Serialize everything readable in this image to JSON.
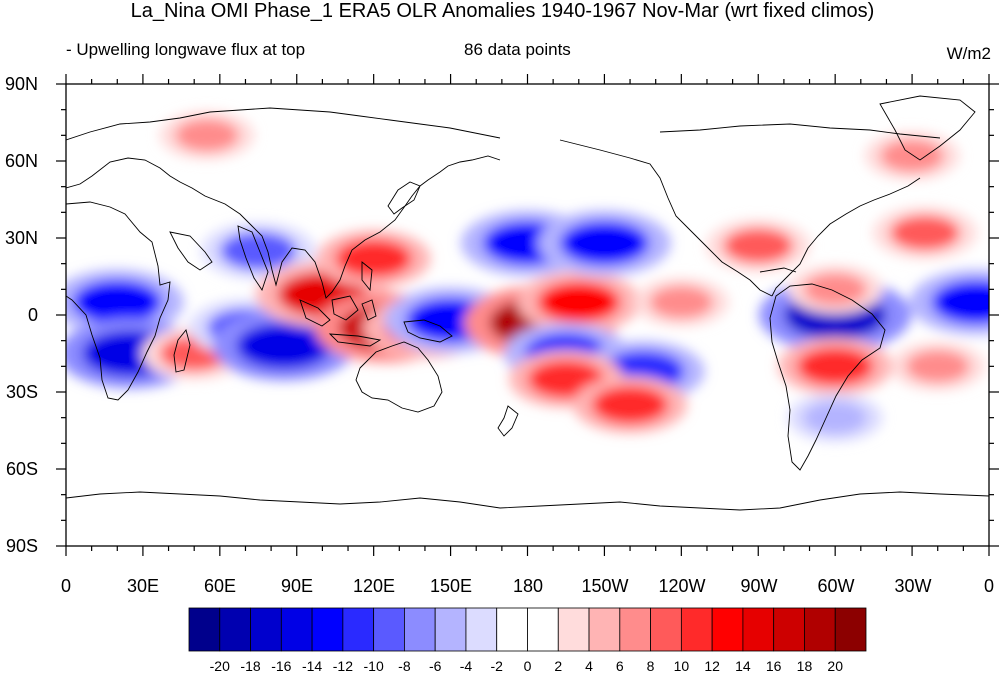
{
  "title": "La_Nina OMI Phase_1 ERA5 OLR Anomalies 1940-1967 Nov-Mar (wrt fixed climos)",
  "subtitle_left": "- Upwelling longwave flux at top",
  "subtitle_center": "86 data points",
  "units": "W/m2",
  "lat_labels": [
    "90N",
    "60N",
    "30N",
    "0",
    "30S",
    "60S",
    "90S"
  ],
  "lon_labels": [
    "0",
    "30E",
    "60E",
    "90E",
    "120E",
    "150E",
    "180",
    "150W",
    "120W",
    "90W",
    "60W",
    "30W",
    "0"
  ],
  "colorbar": {
    "labels": [
      "-20",
      "-18",
      "-16",
      "-14",
      "-12",
      "-10",
      "-8",
      "-6",
      "-4",
      "-2",
      "0",
      "2",
      "4",
      "6",
      "8",
      "10",
      "12",
      "14",
      "16",
      "18",
      "20"
    ],
    "colors": [
      "#00008c",
      "#0000b0",
      "#0000cd",
      "#0000e6",
      "#0000ff",
      "#2a2aff",
      "#5a5aff",
      "#8c8cff",
      "#b4b4ff",
      "#dcdcff",
      "#ffffff",
      "#ffffff",
      "#ffdcdc",
      "#ffb4b4",
      "#ff8c8c",
      "#ff5a5a",
      "#ff2a2a",
      "#ff0000",
      "#e60000",
      "#cd0000",
      "#b00000",
      "#8c0000"
    ]
  },
  "chart_data": {
    "type": "heatmap",
    "title": "La_Nina OMI Phase_1 ERA5 OLR Anomalies 1940-1967 Nov-Mar (wrt fixed climos)",
    "variable": "Upwelling longwave flux at top",
    "units": "W/m2",
    "levels": [
      -20,
      -18,
      -16,
      -14,
      -12,
      -10,
      -8,
      -6,
      -4,
      -2,
      0,
      2,
      4,
      6,
      8,
      10,
      12,
      14,
      16,
      18,
      20
    ],
    "xlim": [
      0,
      360
    ],
    "ylim": [
      -90,
      90
    ],
    "anomaly_blobs": [
      {
        "lon": 20,
        "lat": 5,
        "value": -14
      },
      {
        "lon": 25,
        "lat": -15,
        "value": -16
      },
      {
        "lon": 50,
        "lat": -15,
        "value": 8
      },
      {
        "lon": 75,
        "lat": 25,
        "value": -10
      },
      {
        "lon": 70,
        "lat": -5,
        "value": -10
      },
      {
        "lon": 85,
        "lat": -12,
        "value": -16
      },
      {
        "lon": 100,
        "lat": 8,
        "value": 14
      },
      {
        "lon": 125,
        "lat": -5,
        "value": 16
      },
      {
        "lon": 140,
        "lat": -5,
        "value": 12
      },
      {
        "lon": 120,
        "lat": 22,
        "value": 10
      },
      {
        "lon": 150,
        "lat": -2,
        "value": -14
      },
      {
        "lon": 185,
        "lat": -3,
        "value": 18
      },
      {
        "lon": 200,
        "lat": 5,
        "value": 12
      },
      {
        "lon": 180,
        "lat": 28,
        "value": -14
      },
      {
        "lon": 210,
        "lat": 28,
        "value": -14
      },
      {
        "lon": 195,
        "lat": -15,
        "value": -12
      },
      {
        "lon": 225,
        "lat": -22,
        "value": -12
      },
      {
        "lon": 195,
        "lat": -25,
        "value": 10
      },
      {
        "lon": 220,
        "lat": -35,
        "value": 10
      },
      {
        "lon": 300,
        "lat": 0,
        "value": -18
      },
      {
        "lon": 355,
        "lat": 5,
        "value": -14
      },
      {
        "lon": 270,
        "lat": 27,
        "value": 8
      },
      {
        "lon": 335,
        "lat": 32,
        "value": 8
      },
      {
        "lon": 300,
        "lat": -20,
        "value": 10
      },
      {
        "lon": 340,
        "lat": -20,
        "value": 6
      },
      {
        "lon": 55,
        "lat": 70,
        "value": 6
      },
      {
        "lon": 330,
        "lat": 62,
        "value": 6
      },
      {
        "lon": 300,
        "lat": -40,
        "value": -6
      },
      {
        "lon": 240,
        "lat": 5,
        "value": 6
      },
      {
        "lon": 300,
        "lat": 10,
        "value": 6
      }
    ]
  }
}
